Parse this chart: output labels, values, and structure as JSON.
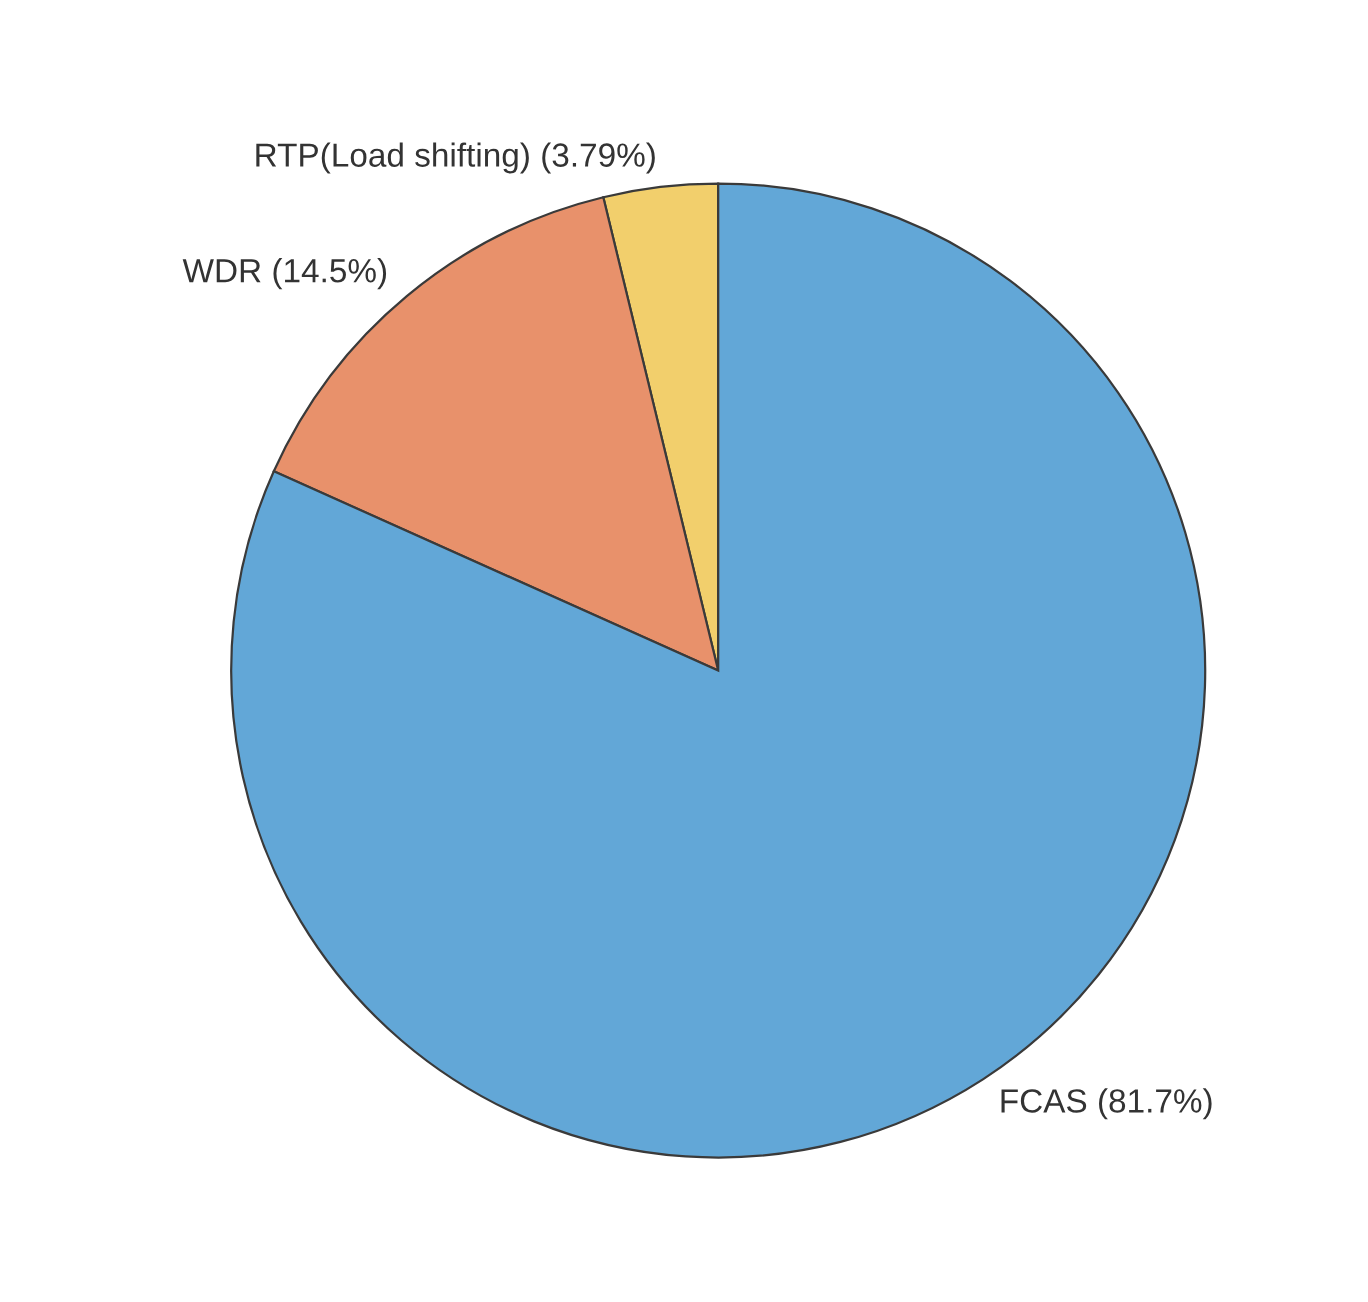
{
  "chart_data": {
    "type": "pie",
    "categories": [
      "RTP(Load shifting) (3.79%)",
      "WDR (14.5%)",
      "FCAS (81.7%)"
    ],
    "values": [
      3.79,
      14.5,
      81.7
    ],
    "colors": [
      "#f2cf6c",
      "#e8916b",
      "#62a7d7"
    ]
  }
}
